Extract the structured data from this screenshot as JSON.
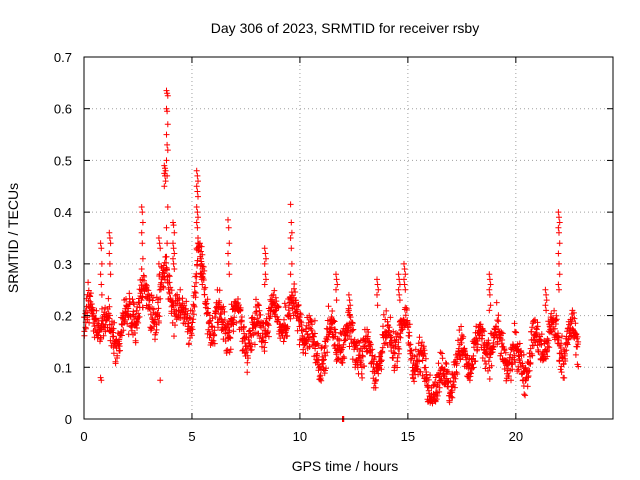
{
  "chart_data": {
    "type": "scatter",
    "title": "Day 306 of 2023, SRMTID for receiver rsby",
    "xlabel": "GPS time / hours",
    "ylabel": "SRMTID / TECUs",
    "xlim": [
      0,
      24.5
    ],
    "ylim": [
      0,
      0.7
    ],
    "xticks": [
      0,
      5,
      10,
      15,
      20
    ],
    "yticks": [
      0,
      0.1,
      0.2,
      0.3,
      0.4,
      0.5,
      0.6,
      0.7
    ],
    "xtick_labels": [
      "0",
      "5",
      "10",
      "15",
      "20"
    ],
    "ytick_labels": [
      "0",
      "0.1",
      "0.2",
      "0.3",
      "0.4",
      "0.5",
      "0.6",
      "0.7"
    ],
    "grid": true,
    "marker": "plus",
    "series_color": "#ff0000",
    "series": [
      {
        "name": "rsby",
        "profile_x": [
          0,
          0.5,
          1,
          1.5,
          2,
          2.5,
          3,
          3.5,
          3.8,
          4,
          4.5,
          5,
          5.3,
          5.6,
          6,
          6.5,
          7,
          7.5,
          8,
          8.5,
          9,
          9.5,
          10,
          10.5,
          11,
          11.5,
          12,
          12.5,
          13,
          13.5,
          14,
          14.5,
          15,
          15.5,
          16,
          16.5,
          17,
          17.5,
          18,
          18.5,
          19,
          19.5,
          20,
          20.5,
          21,
          21.5,
          22,
          22.5,
          22.9
        ],
        "profile_y": [
          0.16,
          0.2,
          0.18,
          0.19,
          0.2,
          0.22,
          0.2,
          0.2,
          0.28,
          0.27,
          0.21,
          0.22,
          0.31,
          0.23,
          0.15,
          0.17,
          0.2,
          0.19,
          0.18,
          0.2,
          0.17,
          0.19,
          0.2,
          0.16,
          0.14,
          0.15,
          0.13,
          0.14,
          0.13,
          0.14,
          0.15,
          0.16,
          0.14,
          0.1,
          0.07,
          0.09,
          0.1,
          0.11,
          0.1,
          0.13,
          0.16,
          0.15,
          0.12,
          0.11,
          0.12,
          0.15,
          0.16,
          0.17,
          0.17
        ],
        "spread": 0.035,
        "n_points": 1900,
        "spikes": [
          {
            "x": 0.8,
            "values": [
              0.34,
              0.33,
              0.3,
              0.28,
              0.26,
              0.24,
              0.08,
              0.075
            ]
          },
          {
            "x": 1.2,
            "values": [
              0.36,
              0.35,
              0.34,
              0.32,
              0.3,
              0.28
            ]
          },
          {
            "x": 2.7,
            "values": [
              0.41,
              0.4,
              0.38,
              0.36,
              0.34,
              0.31,
              0.29,
              0.27
            ]
          },
          {
            "x": 3.5,
            "values": [
              0.35,
              0.34,
              0.33,
              0.3,
              0.28,
              0.075
            ]
          },
          {
            "x": 3.75,
            "values": [
              0.49,
              0.485,
              0.48,
              0.475,
              0.47,
              0.46,
              0.45
            ]
          },
          {
            "x": 3.85,
            "values": [
              0.635,
              0.63,
              0.625,
              0.6,
              0.595,
              0.57,
              0.55,
              0.53,
              0.52,
              0.5,
              0.47,
              0.41,
              0.37,
              0.34
            ]
          },
          {
            "x": 4.15,
            "values": [
              0.38,
              0.375,
              0.36,
              0.34,
              0.33,
              0.32,
              0.31,
              0.3,
              0.29
            ]
          },
          {
            "x": 5.25,
            "values": [
              0.48,
              0.47,
              0.46,
              0.45,
              0.44,
              0.43,
              0.41,
              0.4,
              0.39,
              0.38,
              0.37,
              0.35,
              0.33
            ]
          },
          {
            "x": 5.45,
            "values": [
              0.31,
              0.3,
              0.29,
              0.28,
              0.27,
              0.26
            ]
          },
          {
            "x": 6.7,
            "values": [
              0.385,
              0.37,
              0.34,
              0.32,
              0.3,
              0.28
            ]
          },
          {
            "x": 8.4,
            "values": [
              0.33,
              0.32,
              0.31,
              0.3,
              0.28,
              0.27,
              0.26
            ]
          },
          {
            "x": 9.6,
            "values": [
              0.415,
              0.38,
              0.36,
              0.35,
              0.33,
              0.3,
              0.28
            ]
          },
          {
            "x": 11.7,
            "values": [
              0.28,
              0.27,
              0.26,
              0.25,
              0.23
            ]
          },
          {
            "x": 12.3,
            "values": [
              0.24,
              0.23,
              0.22,
              0.21,
              0.2
            ]
          },
          {
            "x": 13.6,
            "values": [
              0.27,
              0.26,
              0.25,
              0.24,
              0.22
            ]
          },
          {
            "x": 14.6,
            "values": [
              0.28,
              0.27,
              0.26,
              0.25,
              0.24,
              0.23
            ]
          },
          {
            "x": 14.85,
            "values": [
              0.3,
              0.29,
              0.28,
              0.27,
              0.26,
              0.25
            ]
          },
          {
            "x": 18.8,
            "values": [
              0.28,
              0.27,
              0.26,
              0.25,
              0.24,
              0.22,
              0.21
            ]
          },
          {
            "x": 21.4,
            "values": [
              0.25,
              0.24,
              0.23,
              0.22,
              0.21
            ]
          },
          {
            "x": 22.0,
            "values": [
              0.4,
              0.39,
              0.38,
              0.37,
              0.36,
              0.34,
              0.32,
              0.3,
              0.28,
              0.26,
              0.25
            ]
          }
        ],
        "outliers": [
          {
            "x": 12.0,
            "y": 0.0
          }
        ]
      }
    ]
  }
}
